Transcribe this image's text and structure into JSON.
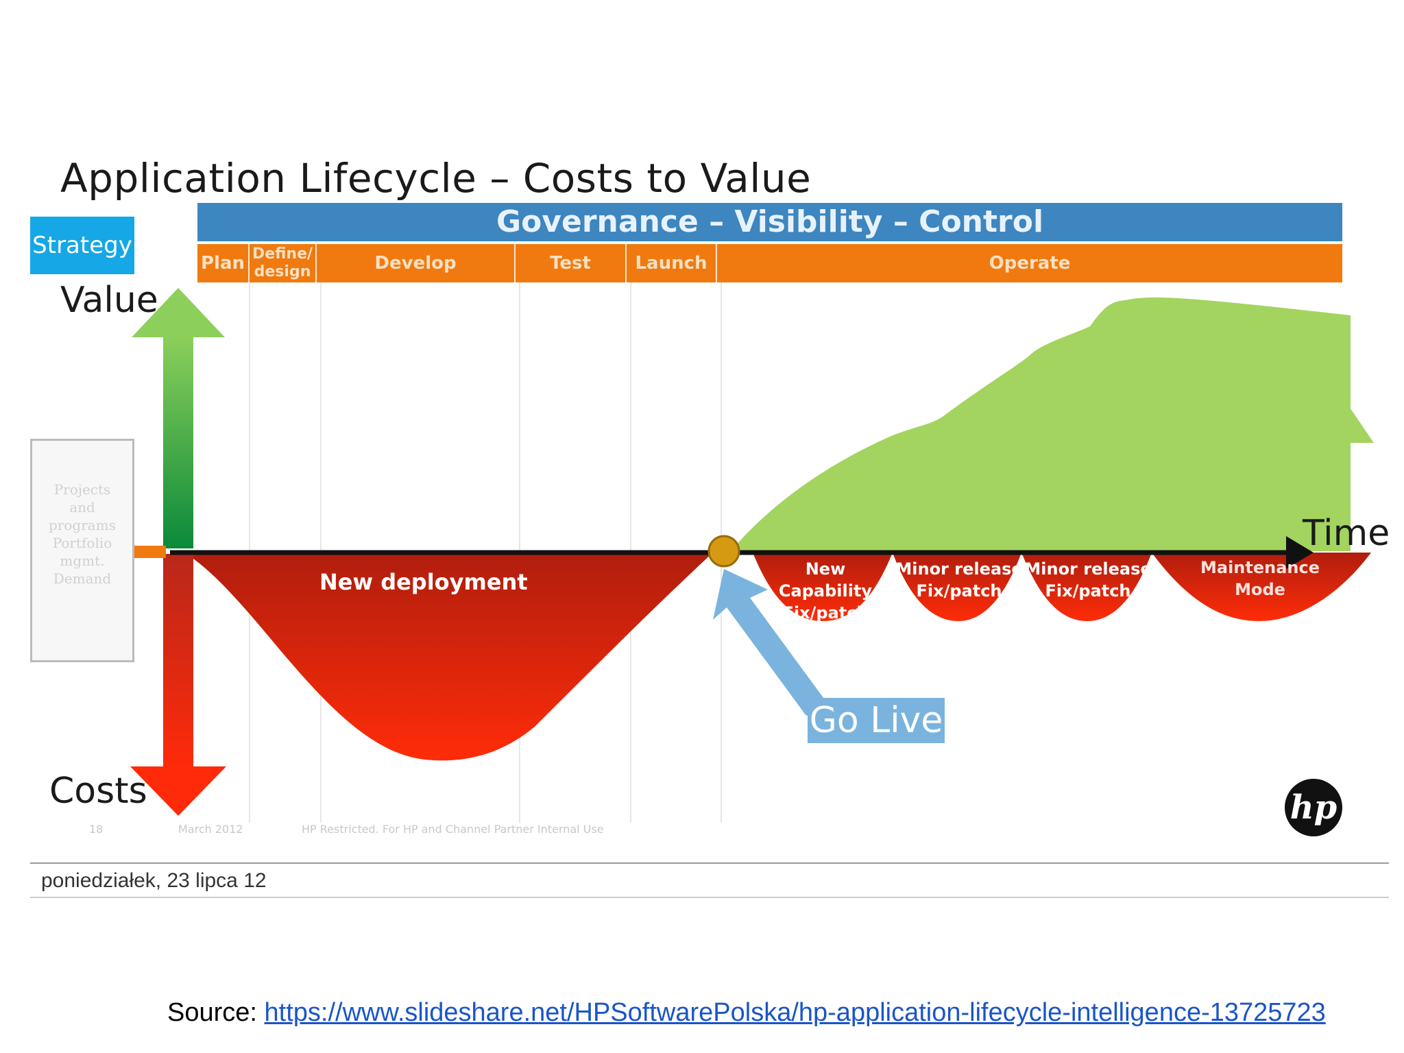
{
  "title": "Application Lifecycle – Costs to Value",
  "governance": "Governance – Visibility – Control",
  "strategy": "Strategy",
  "phases": [
    "Plan",
    "Define/ design",
    "Develop",
    "Test",
    "Launch",
    "Operate"
  ],
  "axes": {
    "value": "Value",
    "costs": "Costs",
    "time": "Time"
  },
  "cost_labels": {
    "new_deployment": "New deployment",
    "new_capability": "New Capability Fix/patch",
    "minor_release_1": "Minor release Fix/patch",
    "minor_release_2": "Minor release Fix/patch",
    "maintenance": "Maintenance Mode"
  },
  "go_live": "Go Live",
  "slide_footer": {
    "page": "18",
    "date": "March 2012",
    "restriction": "HP Restricted. For HP and Channel Partner Internal Use"
  },
  "side_box": [
    "Projects",
    "and",
    "programs",
    "Portfolio",
    "mgmt.",
    "Demand"
  ],
  "footer_date": "poniedziałek, 23 lipca 12",
  "source_label": "Source:",
  "source_url": "https://www.slideshare.net/HPSoftwarePolska/hp-application-lifecycle-intelligence-13725723",
  "colors": {
    "governance": "#3d86c0",
    "phases": "#f07a0f",
    "value": "#a3d45f",
    "cost": "#e0200a",
    "golive": "#7ab3de"
  }
}
